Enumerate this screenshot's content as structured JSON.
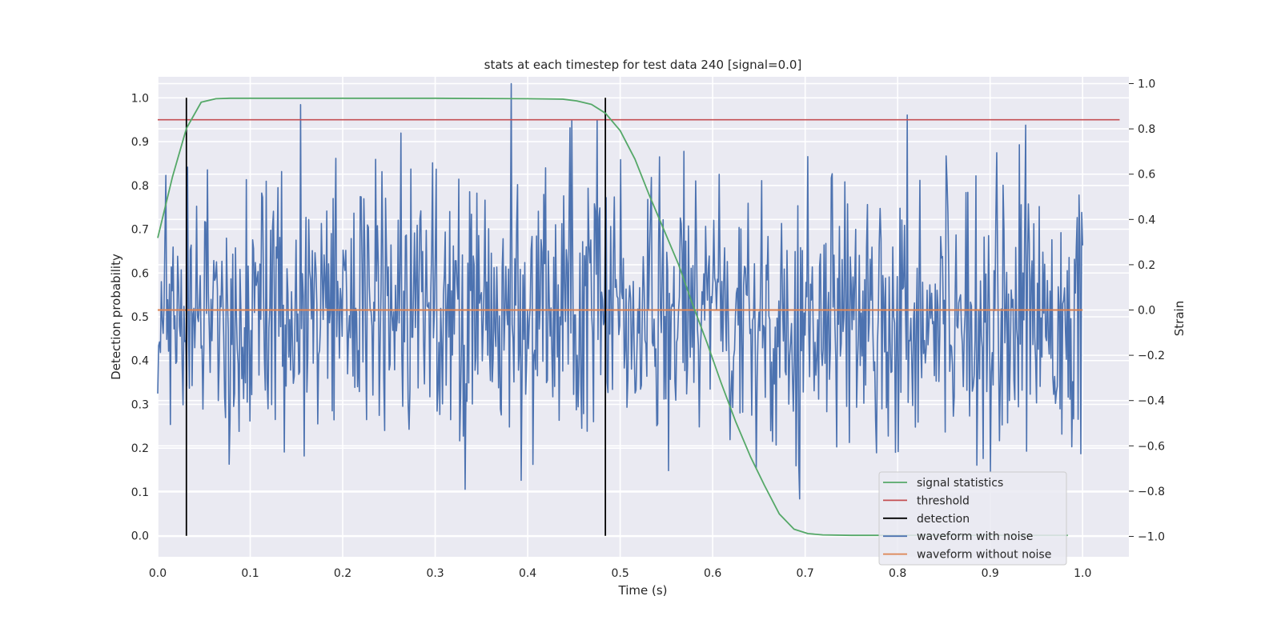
{
  "chart_data": {
    "type": "line",
    "title": "stats at each timestep for test data 240 [signal=0.0]",
    "xlabel": "Time (s)",
    "ylabel": "Detection probability",
    "y2label": "Strain",
    "xlim": [
      0.0,
      1.05
    ],
    "ylim": [
      -0.048,
      1.048
    ],
    "y2lim": [
      -1.09,
      1.03
    ],
    "x_ticks": [
      0.0,
      0.1,
      0.2,
      0.3,
      0.4,
      0.5,
      0.6,
      0.7,
      0.8,
      0.9,
      1.0
    ],
    "x_tick_labels": [
      "0.0",
      "0.1",
      "0.2",
      "0.3",
      "0.4",
      "0.5",
      "0.6",
      "0.7",
      "0.8",
      "0.9",
      "1.0"
    ],
    "y_ticks": [
      0.0,
      0.1,
      0.2,
      0.3,
      0.4,
      0.5,
      0.6,
      0.7,
      0.8,
      0.9,
      1.0
    ],
    "y_tick_labels": [
      "0.0",
      "0.1",
      "0.2",
      "0.3",
      "0.4",
      "0.5",
      "0.6",
      "0.7",
      "0.8",
      "0.9",
      "1.0"
    ],
    "y2_ticks": [
      -1.0,
      -0.8,
      -0.6,
      -0.4,
      -0.2,
      0.0,
      0.2,
      0.4,
      0.6,
      0.8,
      1.0
    ],
    "y2_tick_labels": [
      "−1.0",
      "−0.8",
      "−0.6",
      "−0.4",
      "−0.2",
      "0.0",
      "0.2",
      "0.4",
      "0.6",
      "0.8",
      "1.0"
    ],
    "grid": true,
    "legend_position": "lower-right",
    "series": [
      {
        "name": "signal statistics",
        "axis": "left",
        "color": "#55a868",
        "x": [
          0.0,
          0.016,
          0.031,
          0.047,
          0.063,
          0.078,
          0.094,
          0.2,
          0.3,
          0.4,
          0.438,
          0.453,
          0.469,
          0.484,
          0.5,
          0.516,
          0.531,
          0.547,
          0.563,
          0.578,
          0.594,
          0.609,
          0.625,
          0.641,
          0.656,
          0.672,
          0.688,
          0.703,
          0.719,
          0.75,
          0.8,
          0.85,
          0.9,
          0.95,
          0.984
        ],
        "y": [
          0.68,
          0.82,
          0.93,
          0.99,
          0.998,
          0.999,
          0.999,
          0.999,
          0.999,
          0.998,
          0.997,
          0.993,
          0.985,
          0.965,
          0.925,
          0.86,
          0.78,
          0.7,
          0.62,
          0.53,
          0.44,
          0.35,
          0.26,
          0.18,
          0.115,
          0.05,
          0.015,
          0.005,
          0.002,
          0.001,
          0.001,
          0.001,
          0.001,
          0.001,
          0.001
        ]
      },
      {
        "name": "threshold",
        "axis": "left",
        "color": "#c44e52",
        "x": [
          0.0,
          1.04
        ],
        "y": [
          0.95,
          0.95
        ]
      },
      {
        "name": "detection",
        "axis": "left",
        "color": "#000000",
        "type": "vlines",
        "x": [
          0.031,
          0.484
        ],
        "ymin": 0.0,
        "ymax": 1.0
      },
      {
        "name": "waveform with noise",
        "axis": "right",
        "color": "#4c72b0",
        "samples": 1024,
        "x_range": [
          0.0,
          1.0
        ],
        "y_range": [
          -1.0,
          1.0
        ],
        "y_mean": 0.0,
        "y_std": 0.3
      },
      {
        "name": "waveform without noise",
        "axis": "right",
        "color": "#dd8452",
        "x": [
          0.0,
          1.0
        ],
        "y": [
          0.0,
          0.0
        ]
      }
    ]
  }
}
